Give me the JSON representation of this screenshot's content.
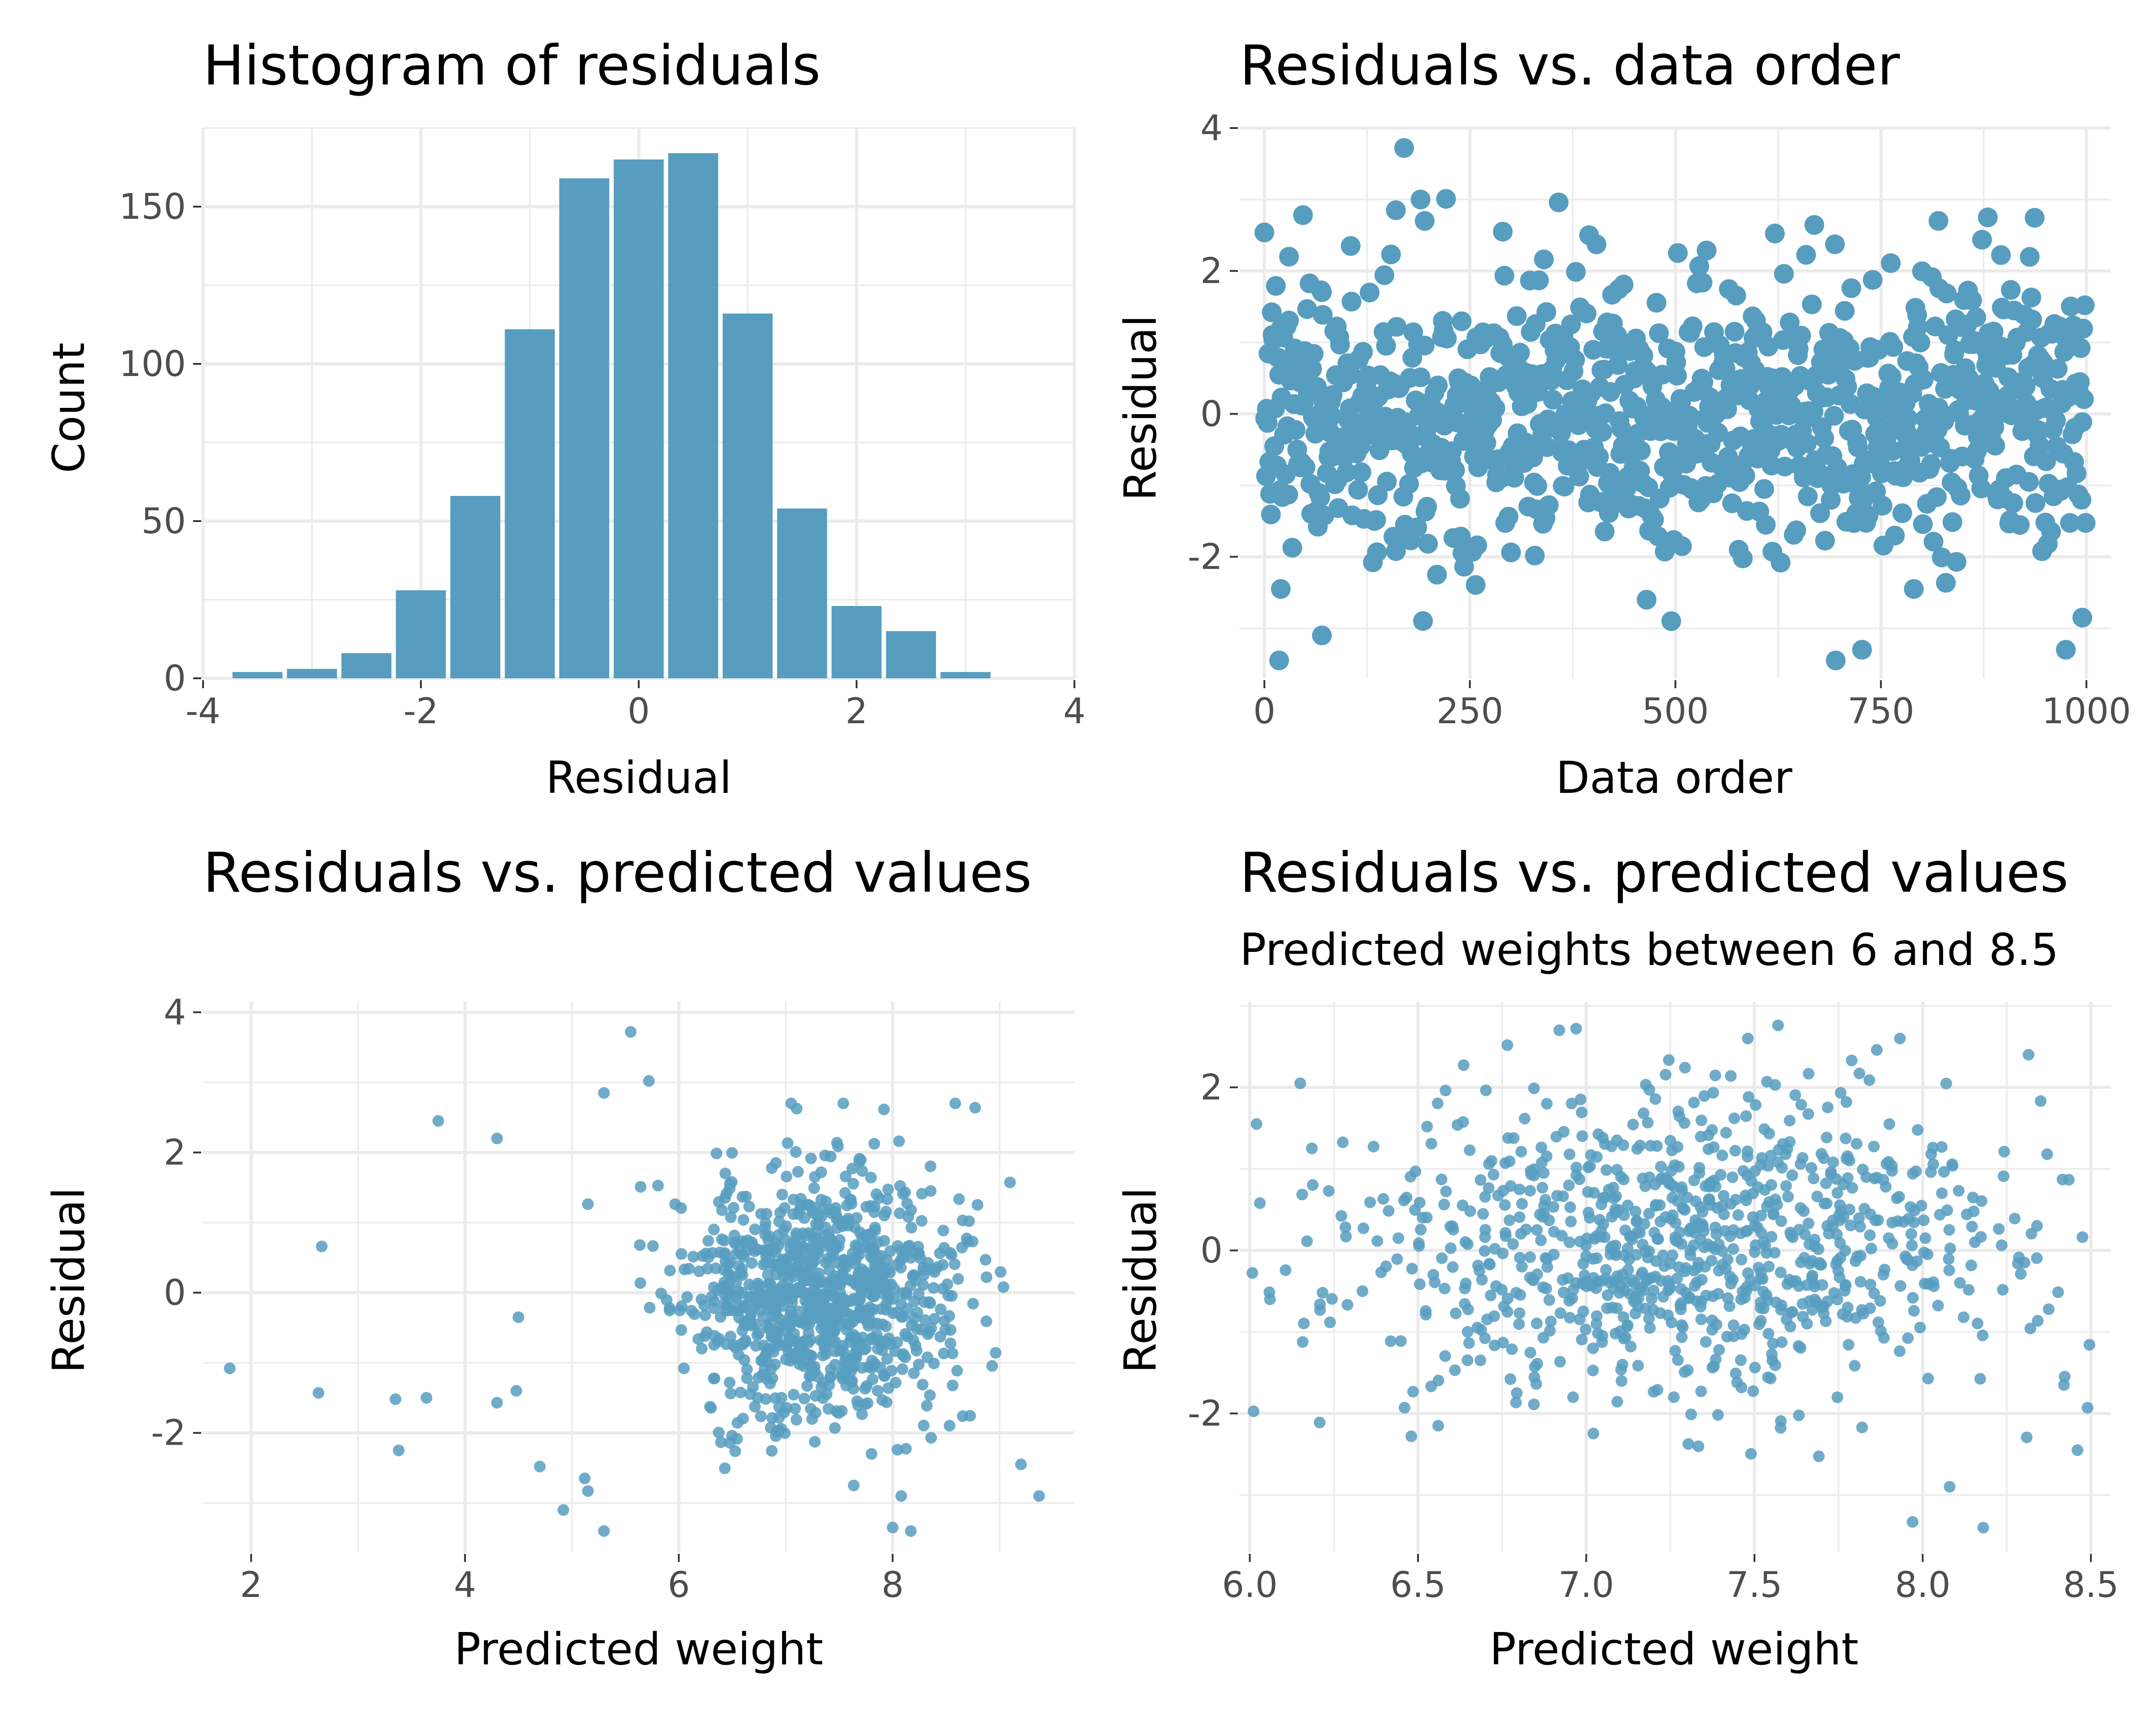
{
  "chart_data": [
    {
      "type": "bar",
      "title": "Histogram of residuals",
      "xlabel": "Residual",
      "ylabel": "Count",
      "xlim": [
        -4,
        4
      ],
      "ylim": [
        0,
        175
      ],
      "x_ticks": [
        -4,
        -2,
        0,
        2,
        4
      ],
      "x_tick_labels": [
        "-4",
        "-2",
        "0",
        "2",
        "4"
      ],
      "y_ticks": [
        0,
        50,
        100,
        150
      ],
      "y_tick_labels": [
        "0",
        "50",
        "100",
        "150"
      ],
      "grid": true,
      "bin_width": 0.5,
      "bars": [
        {
          "x0": -3.75,
          "x1": -3.25,
          "count": 2
        },
        {
          "x0": -3.25,
          "x1": -2.75,
          "count": 3
        },
        {
          "x0": -2.75,
          "x1": -2.25,
          "count": 8
        },
        {
          "x0": -2.25,
          "x1": -1.75,
          "count": 28
        },
        {
          "x0": -1.75,
          "x1": -1.25,
          "count": 58
        },
        {
          "x0": -1.25,
          "x1": -0.75,
          "count": 111
        },
        {
          "x0": -0.75,
          "x1": -0.25,
          "count": 159
        },
        {
          "x0": -0.25,
          "x1": 0.25,
          "count": 165
        },
        {
          "x0": 0.25,
          "x1": 0.75,
          "count": 167
        },
        {
          "x0": 0.75,
          "x1": 1.25,
          "count": 116
        },
        {
          "x0": 1.25,
          "x1": 1.75,
          "count": 54
        },
        {
          "x0": 1.75,
          "x1": 2.25,
          "count": 23
        },
        {
          "x0": 2.25,
          "x1": 2.75,
          "count": 15
        },
        {
          "x0": 2.75,
          "x1": 3.25,
          "count": 2
        }
      ],
      "color": "#579dbf"
    },
    {
      "type": "scatter",
      "title": "Residuals vs. data order",
      "xlabel": "Data order",
      "ylabel": "Residual",
      "xlim": [
        -30,
        1030
      ],
      "ylim": [
        -3.7,
        4.0
      ],
      "x_ticks": [
        0,
        250,
        500,
        750,
        1000
      ],
      "x_tick_labels": [
        "0",
        "250",
        "500",
        "750",
        "1000"
      ],
      "y_ticks": [
        -2,
        0,
        2,
        4
      ],
      "y_tick_labels": [
        "-2",
        "0",
        "2",
        "4"
      ],
      "grid": true,
      "n_points": 1000,
      "color": "#579dbf",
      "highlighted_points": [
        {
          "x": 170,
          "y": 3.72
        },
        {
          "x": 190,
          "y": 3.0
        },
        {
          "x": 160,
          "y": 2.85
        },
        {
          "x": 195,
          "y": 2.7
        },
        {
          "x": 880,
          "y": 2.75
        },
        {
          "x": 820,
          "y": 2.7
        },
        {
          "x": 290,
          "y": 2.55
        },
        {
          "x": 395,
          "y": 2.5
        },
        {
          "x": 30,
          "y": 2.2
        },
        {
          "x": 105,
          "y": 2.35
        },
        {
          "x": 18,
          "y": -3.45
        },
        {
          "x": 695,
          "y": -3.45
        },
        {
          "x": 975,
          "y": -3.3
        },
        {
          "x": 70,
          "y": -3.1
        },
        {
          "x": 20,
          "y": -2.45
        },
        {
          "x": 465,
          "y": -2.6
        },
        {
          "x": 495,
          "y": -2.9
        },
        {
          "x": 995,
          "y": -2.85
        },
        {
          "x": 790,
          "y": -2.45
        },
        {
          "x": 210,
          "y": -2.25
        }
      ]
    },
    {
      "type": "scatter",
      "title": "Residuals vs. predicted values",
      "xlabel": "Predicted weight",
      "ylabel": "Residual",
      "xlim": [
        1.55,
        9.7
      ],
      "ylim": [
        -3.7,
        4.15
      ],
      "x_ticks": [
        2,
        4,
        6,
        8
      ],
      "x_tick_labels": [
        "2",
        "4",
        "6",
        "8"
      ],
      "y_ticks": [
        -2,
        0,
        2,
        4
      ],
      "y_tick_labels": [
        "-2",
        "0",
        "2",
        "4"
      ],
      "grid": true,
      "n_points": 1000,
      "color": "#579dbf",
      "highlighted_points": [
        {
          "x": 1.8,
          "y": -1.08
        },
        {
          "x": 2.63,
          "y": -1.43
        },
        {
          "x": 2.66,
          "y": 0.66
        },
        {
          "x": 3.35,
          "y": -1.52
        },
        {
          "x": 3.38,
          "y": -2.25
        },
        {
          "x": 3.64,
          "y": -1.5
        },
        {
          "x": 3.75,
          "y": 2.45
        },
        {
          "x": 4.3,
          "y": 2.2
        },
        {
          "x": 4.3,
          "y": -1.57
        },
        {
          "x": 4.5,
          "y": -0.35
        },
        {
          "x": 4.48,
          "y": -1.4
        },
        {
          "x": 4.7,
          "y": -2.48
        },
        {
          "x": 4.92,
          "y": -3.1
        },
        {
          "x": 5.12,
          "y": -2.65
        },
        {
          "x": 5.15,
          "y": -2.83
        },
        {
          "x": 5.3,
          "y": -3.4
        },
        {
          "x": 5.55,
          "y": 3.72
        },
        {
          "x": 5.72,
          "y": 3.02
        },
        {
          "x": 5.3,
          "y": 2.85
        },
        {
          "x": 8.0,
          "y": -3.35
        },
        {
          "x": 8.17,
          "y": -3.4
        },
        {
          "x": 8.08,
          "y": -2.9
        },
        {
          "x": 9.37,
          "y": -2.9
        },
        {
          "x": 9.2,
          "y": -2.45
        }
      ]
    },
    {
      "type": "scatter",
      "title": "Residuals vs. predicted values",
      "subtitle": "Predicted weights between 6 and 8.5",
      "xlabel": "Predicted weight",
      "ylabel": "Residual",
      "xlim": [
        5.97,
        8.56
      ],
      "ylim": [
        -3.7,
        3.05
      ],
      "x_ticks": [
        6.0,
        6.5,
        7.0,
        7.5,
        8.0,
        8.5
      ],
      "x_tick_labels": [
        "6.0",
        "6.5",
        "7.0",
        "7.5",
        "8.0",
        "8.5"
      ],
      "y_ticks": [
        -2,
        0,
        2
      ],
      "y_tick_labels": [
        "-2",
        "0",
        "2"
      ],
      "grid": true,
      "n_points": 930,
      "color": "#579dbf",
      "highlighted_points": [
        {
          "x": 6.02,
          "y": 1.55
        },
        {
          "x": 6.15,
          "y": 2.05
        },
        {
          "x": 6.03,
          "y": 0.58
        },
        {
          "x": 6.06,
          "y": -0.6
        },
        {
          "x": 6.48,
          "y": -2.28
        },
        {
          "x": 6.56,
          "y": -2.15
        },
        {
          "x": 6.92,
          "y": 2.7
        },
        {
          "x": 6.97,
          "y": 2.72
        },
        {
          "x": 7.57,
          "y": 2.76
        },
        {
          "x": 7.97,
          "y": -3.33
        },
        {
          "x": 8.18,
          "y": -3.4
        },
        {
          "x": 8.08,
          "y": -2.9
        },
        {
          "x": 8.46,
          "y": -2.45
        },
        {
          "x": 8.42,
          "y": -1.65
        },
        {
          "x": 8.49,
          "y": -1.93
        },
        {
          "x": 8.37,
          "y": 1.18
        }
      ]
    }
  ]
}
